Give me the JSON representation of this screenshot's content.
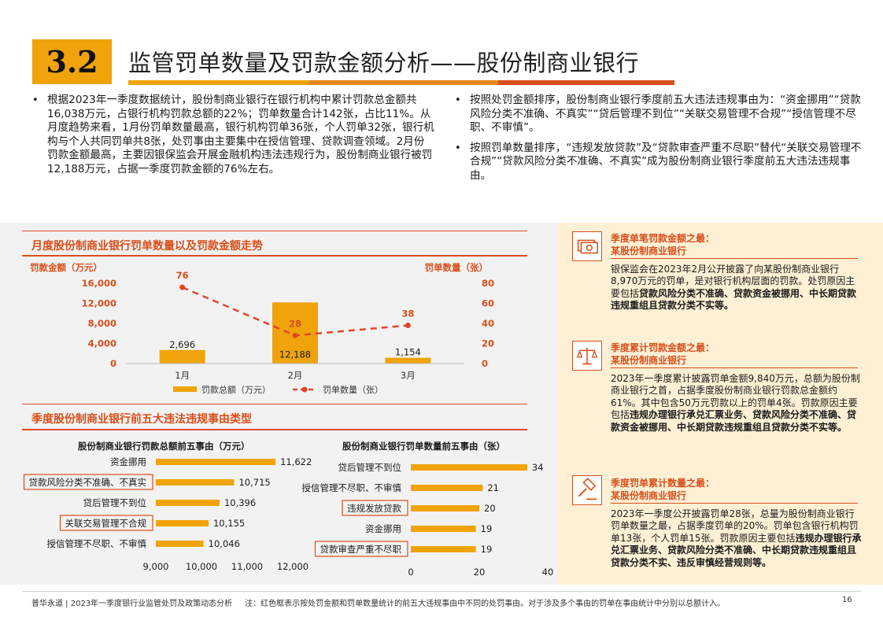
{
  "header": {
    "section_number": "3.2",
    "title": "监管罚单数量及罚款金额分析——股份制商业银行",
    "bar_colors": [
      "#f0a30a",
      "#e8871a",
      "#d94e1a"
    ]
  },
  "bullets_left": [
    "根据2023年一季度数据统计，股份制商业银行在银行机构中累计罚款总金额共16,038万元，占银行机构罚款总额的22%；罚单数量合计142张，占比11%。从月度趋势来看，1月份罚单数量最高，银行机构罚单36张，个人罚单32张，银行机构与个人共同罚单共8张，处罚事由主要集中在授信管理、贷款调查领域。2月份罚款金额最高，主要因银保监会开展金融机构违法违规行为，股份制商业银行被罚12,188万元，占据一季度罚款金额的76%左右。"
  ],
  "bullets_right": [
    "按照处罚金额排序，股份制商业银行季度前五大违法违规事由为：“资金挪用”“贷款风险分类不准确、不真实”“贷后管理不到位”“关联交易管理不合规”“授信管理不尽职、不审慎”。",
    "按照罚单数量排序，“违规发放贷款”及“贷款审查严重不尽职”替代“关联交易管理不合规”“贷款风险分类不准确、不真实”成为股份制商业银行季度前五大违法违规事由。"
  ],
  "sections": {
    "monthly_title": "月度股份制商业银行罚单数量以及罚款金额走势",
    "top5_title": "季度股份制商业银行前五大违法违规事由类型"
  },
  "chart_data": [
    {
      "type": "bar+line",
      "title": "月度股份制商业银行罚单数量以及罚款金额走势",
      "categories": [
        "1月",
        "2月",
        "3月"
      ],
      "ylabel_left": "罚款金额（万元）",
      "ylabel_right": "罚单数量（张）",
      "ylim_left": [
        0,
        16000
      ],
      "yticks_left": [
        "0",
        "4,000",
        "8,000",
        "12,000",
        "16,000"
      ],
      "ylim_right": [
        0,
        80
      ],
      "yticks_right": [
        "0",
        "20",
        "40",
        "60",
        "80"
      ],
      "series": [
        {
          "name": "罚款总额（万元）",
          "type": "bar",
          "axis": "left",
          "values": [
            2696,
            12188,
            1154
          ],
          "labels": [
            "2,696",
            "12,188",
            "1,154"
          ],
          "color": "#f0a30a"
        },
        {
          "name": "罚单数量（张）",
          "type": "line",
          "axis": "right",
          "values": [
            76,
            28,
            38
          ],
          "labels": [
            "76",
            "28",
            "38"
          ],
          "color": "#e0452a"
        }
      ],
      "legend": "bottom"
    },
    {
      "type": "bar",
      "orientation": "horizontal",
      "title": "股份制商业银行罚款总额前五事由（万元）",
      "categories": [
        "资金挪用",
        "贷款风险分类不准确、不真实",
        "贷后管理不到位",
        "关联交易管理不合规",
        "授信管理不尽职、不审慎"
      ],
      "values": [
        11622,
        10715,
        10396,
        10155,
        10046
      ],
      "labels": [
        "11,622",
        "10,715",
        "10,396",
        "10,155",
        "10,046"
      ],
      "highlighted": [
        false,
        true,
        false,
        true,
        false
      ],
      "xlim": [
        9000,
        12000
      ],
      "xticks": [
        "9,000",
        "10,000",
        "11,000",
        "12,000"
      ],
      "color": "#f0a30a"
    },
    {
      "type": "bar",
      "orientation": "horizontal",
      "title": "股份制商业银行罚单数量前五事由（张）",
      "categories": [
        "贷后管理不到位",
        "授信管理不尽职、不审慎",
        "违规发放贷款",
        "资金挪用",
        "贷款审查严重不尽职"
      ],
      "values": [
        34,
        21,
        20,
        19,
        19
      ],
      "labels": [
        "34",
        "21",
        "20",
        "19",
        "19"
      ],
      "highlighted": [
        false,
        false,
        true,
        false,
        true
      ],
      "xlim": [
        0,
        40
      ],
      "xticks": [
        "0",
        "20",
        "40"
      ],
      "color": "#f0a30a"
    }
  ],
  "cards": [
    {
      "icon": "money-bill-icon",
      "title_line1": "季度单笔罚款金额之最：",
      "title_line2": "某股份制商业银行",
      "segments": [
        {
          "t": "银保监会在2023年2月公开披露了向某股份制商业银行8,970万元的罚单，是对银行机构层面的罚款。处罚原因主要包括",
          "b": false
        },
        {
          "t": "贷款风险分类不准确、贷款资金被挪用、中长期贷款违规重组且贷款分类不实等。",
          "b": true
        }
      ]
    },
    {
      "icon": "balance-scale-icon",
      "title_line1": "季度累计罚款金额之最：",
      "title_line2": "某股份制商业银行",
      "segments": [
        {
          "t": "2023年一季度累计披露罚单金额9,840万元，总额为股份制商业银行之首，占据季度股份制商业银行罚款总金额约61%。其中包含50万元罚款以上的罚单4张。罚款原因主要包括",
          "b": false
        },
        {
          "t": "违规办理银行承兑汇票业务、贷款风险分类不准确、贷款资金被挪用、中长期贷款违规重组且贷款分类不实等。",
          "b": true
        }
      ]
    },
    {
      "icon": "gavel-icon",
      "title_line1": "季度罚单累计数量之最：",
      "title_line2": "某股份制商业银行",
      "segments": [
        {
          "t": "2023年一季度公开披露罚单28张，总量为股份制商业银行罚单数量之最，占据季度罚单的20%。罚单包含银行机构罚单13张，个人罚单15张。罚款原因主要包括",
          "b": false
        },
        {
          "t": "违规办理银行承兑汇票业务、贷款风险分类不准确、中长期贷款违规重组且贷款分类不实、违反审慎经营规则等。",
          "b": true
        }
      ]
    }
  ],
  "footer": {
    "source": "普华永道 | 2023年一季度银行业监管处罚及政策动态分析",
    "note": "注：红色框表示按处罚金额和罚单数量统计的前五大违规事由中不同的处罚事由。对于涉及多个事由的罚单在事由统计中分别以总额计入。",
    "page": "16"
  },
  "colors": {
    "accent": "#d94e1a",
    "bar": "#f0a30a",
    "line": "#e0452a",
    "gray_panel": "#f2f2f2",
    "cream_panel": "#fdf0d5"
  }
}
